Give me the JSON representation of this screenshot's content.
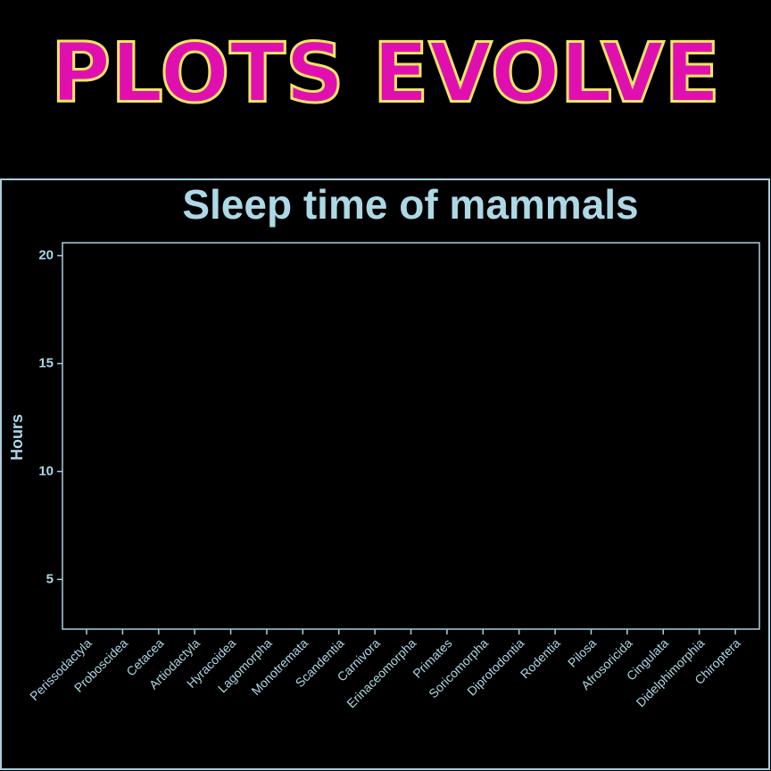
{
  "header": {
    "title": "PLOTS EVOLVE"
  },
  "chart_data": {
    "type": "bar",
    "title": "Sleep time of mammals",
    "y_label": "Hours",
    "categories": [
      "Perissodactyla",
      "Proboscidea",
      "Cetacea",
      "Artiodactyla",
      "Hyracoidea",
      "Lagomorpha",
      "Monotremata",
      "Scandentia",
      "Carnivora",
      "Erinaceomorpha",
      "Primates",
      "Soricomorpha",
      "Diprotodontia",
      "Rodentia",
      "Pilosa",
      "Afrosoricida",
      "Cingulata",
      "Didelphimorphia",
      "Chiroptera"
    ],
    "ylim": [
      2.7,
      20.6
    ],
    "yticks": [
      5,
      10,
      15,
      20
    ],
    "color": "#add8e6"
  }
}
